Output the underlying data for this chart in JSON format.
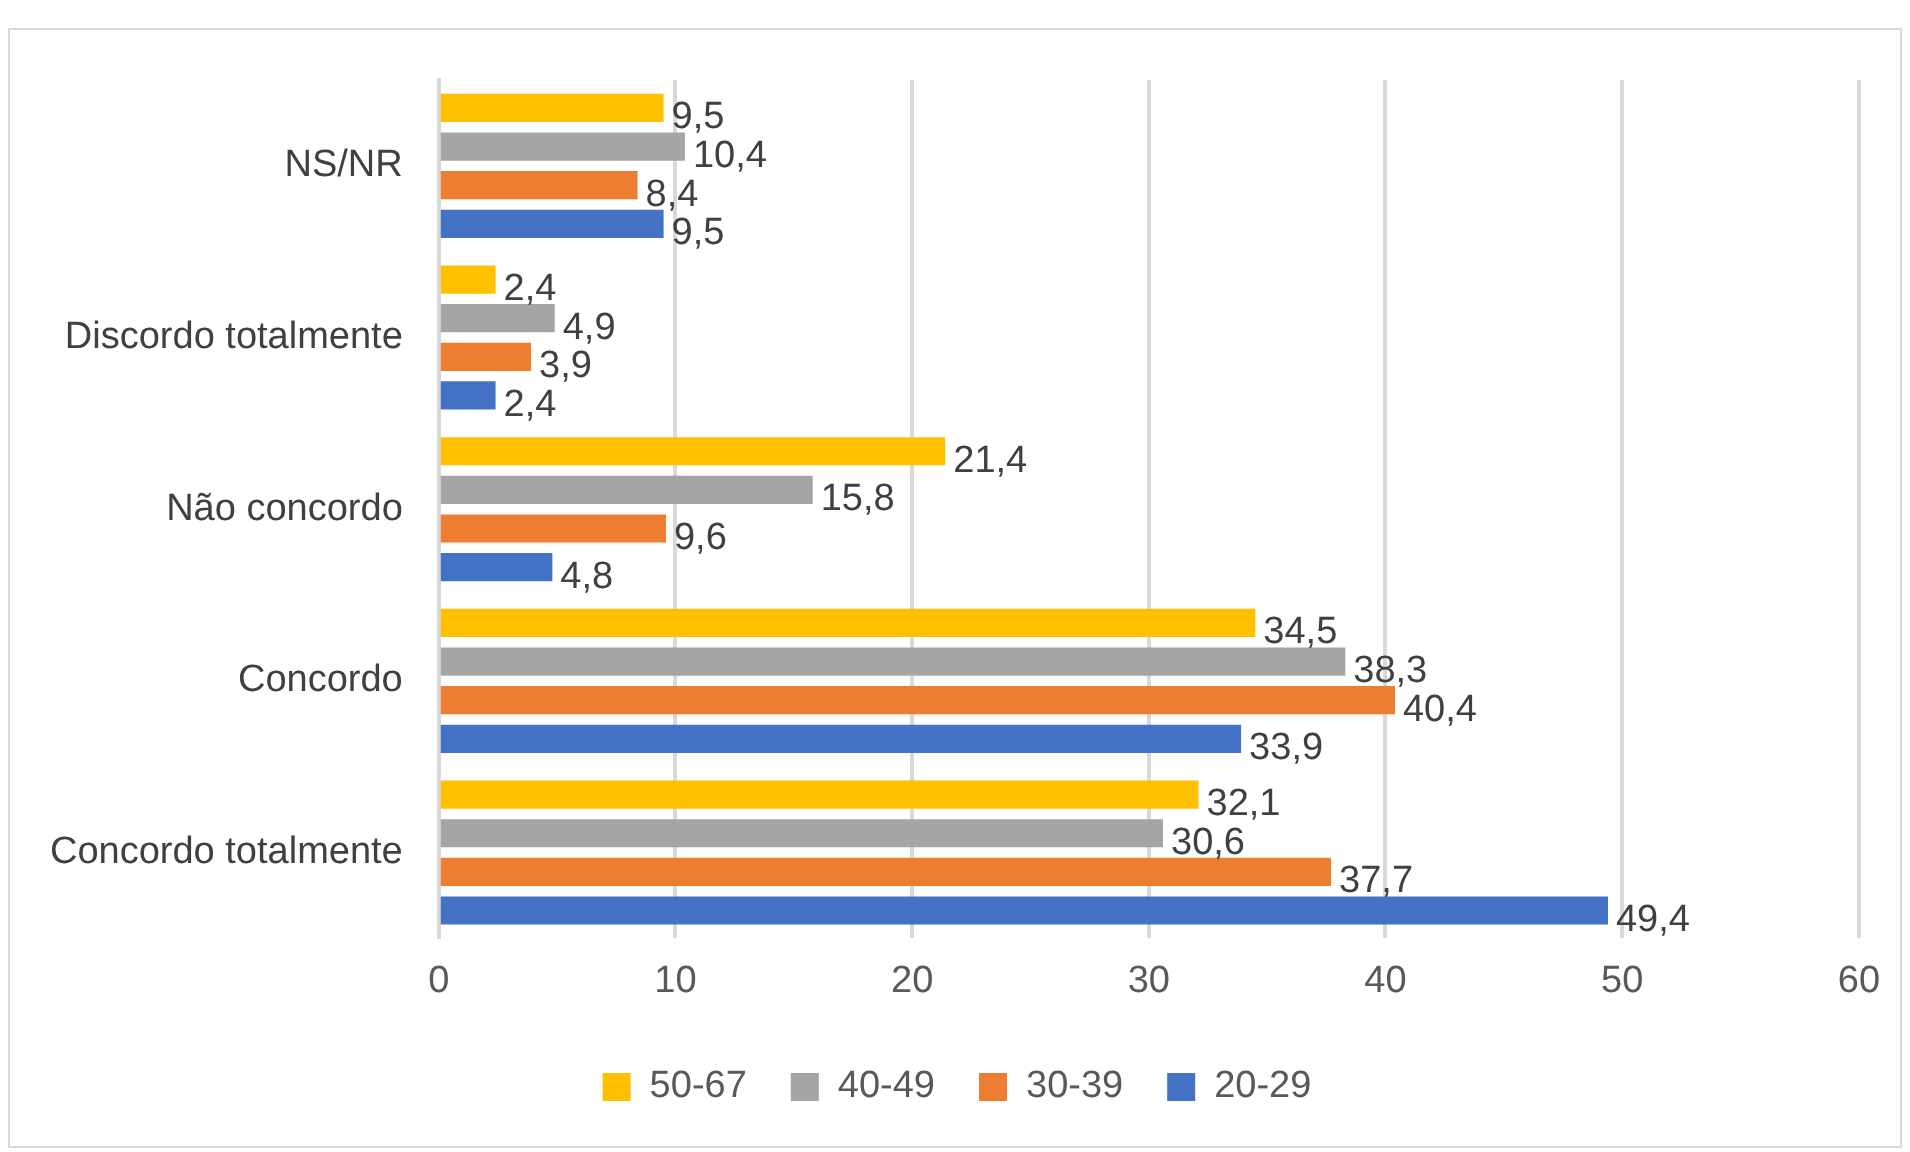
{
  "chart_data": {
    "type": "bar",
    "orientation": "horizontal",
    "categories": [
      "NS/NR",
      "Discordo totalmente",
      "Não concordo",
      "Concordo",
      "Concordo totalmente"
    ],
    "series": [
      {
        "name": "50-67",
        "color": "#ffc000",
        "values": [
          9.5,
          2.4,
          21.4,
          34.5,
          32.1
        ],
        "value_labels": [
          "9,5",
          "2,4",
          "21,4",
          "34,5",
          "32,1"
        ]
      },
      {
        "name": "40-49",
        "color": "#a5a5a5",
        "values": [
          10.4,
          4.9,
          15.8,
          38.3,
          30.6
        ],
        "value_labels": [
          "10,4",
          "4,9",
          "15,8",
          "38,3",
          "30,6"
        ]
      },
      {
        "name": "30-39",
        "color": "#ed7d31",
        "values": [
          8.4,
          3.9,
          9.6,
          40.4,
          37.7
        ],
        "value_labels": [
          "8,4",
          "3,9",
          "9,6",
          "40,4",
          "37,7"
        ]
      },
      {
        "name": "20-29",
        "color": "#4472c4",
        "values": [
          9.5,
          2.4,
          4.8,
          33.9,
          49.4
        ],
        "value_labels": [
          "9,5",
          "2,4",
          "4,8",
          "33,9",
          "49,4"
        ]
      }
    ],
    "xlim": [
      0,
      60
    ],
    "xticks": [
      0,
      10,
      20,
      30,
      40,
      50,
      60
    ],
    "grid": "x",
    "legend": "bottom"
  }
}
